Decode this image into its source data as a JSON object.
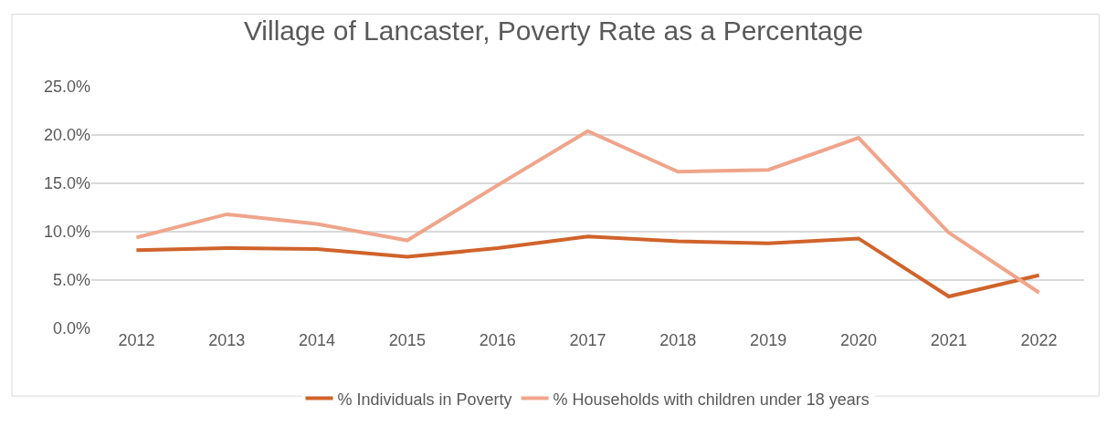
{
  "chart_data": {
    "type": "line",
    "title": "Village of Lancaster, Poverty Rate as a Percentage",
    "categories": [
      "2012",
      "2013",
      "2014",
      "2015",
      "2016",
      "2017",
      "2018",
      "2019",
      "2020",
      "2021",
      "2022"
    ],
    "series": [
      {
        "name": "% Individuals in Poverty",
        "color": "#d0632b",
        "values": [
          8.1,
          8.3,
          8.2,
          7.4,
          8.3,
          9.5,
          9.0,
          8.8,
          9.3,
          3.3,
          5.5
        ]
      },
      {
        "name": "% Households with children under 18 years",
        "color": "#efa58b",
        "values": [
          9.4,
          11.8,
          10.8,
          9.1,
          14.8,
          20.4,
          16.2,
          16.4,
          19.7,
          9.9,
          3.7
        ]
      }
    ],
    "ylim": [
      0,
      25
    ],
    "yticks": [
      {
        "value": 0,
        "label": "0.0%"
      },
      {
        "value": 5,
        "label": "5.0%"
      },
      {
        "value": 10,
        "label": "10.0%"
      },
      {
        "value": 15,
        "label": "15.0%"
      },
      {
        "value": 20,
        "label": "20.0%"
      },
      {
        "value": 25,
        "label": "25.0%"
      }
    ],
    "grid": "y",
    "legend": "bottom",
    "marker": "none",
    "line_style": "solid"
  }
}
